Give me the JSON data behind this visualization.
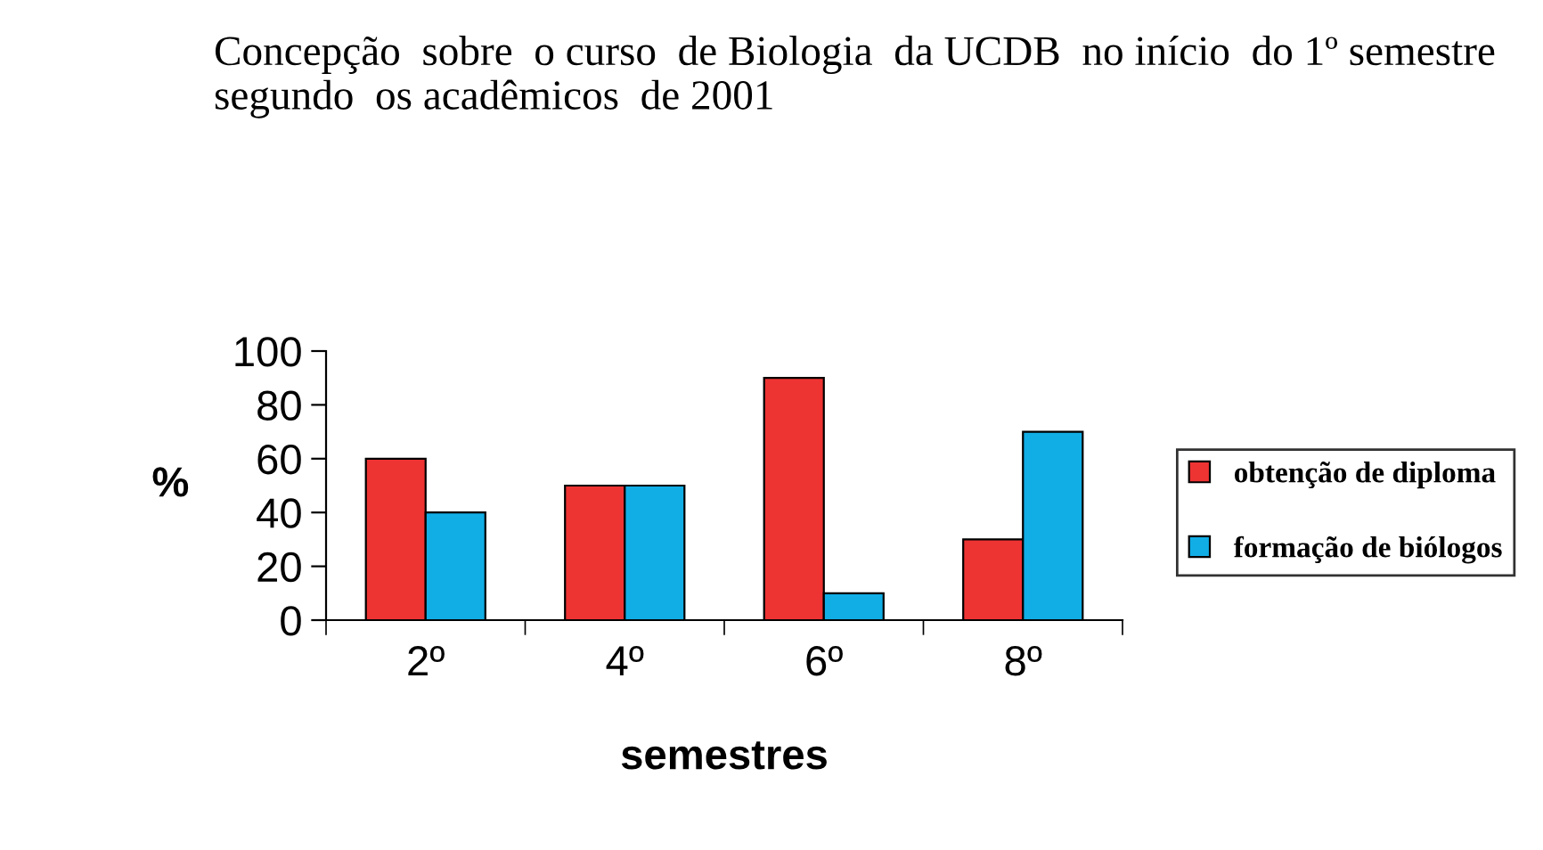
{
  "chart_data": {
    "type": "bar",
    "title": "Concepção  sobre  o curso  de Biologia  da UCDB  no início  do 1º semestre  segundo  os acadêmicos  de 2001",
    "xlabel": "semestres",
    "ylabel": "%",
    "categories": [
      "2º",
      "4º",
      "6º",
      "8º"
    ],
    "series": [
      {
        "name": "obtenção de diploma",
        "color": "#ee3333",
        "values": [
          60,
          50,
          90,
          30
        ]
      },
      {
        "name": "formação de biólogos",
        "color": "#11aee6",
        "values": [
          40,
          50,
          10,
          70
        ]
      }
    ],
    "ylim": [
      0,
      100
    ],
    "yticks": [
      0,
      20,
      40,
      60,
      80,
      100
    ],
    "grid": false,
    "legend": "right"
  }
}
